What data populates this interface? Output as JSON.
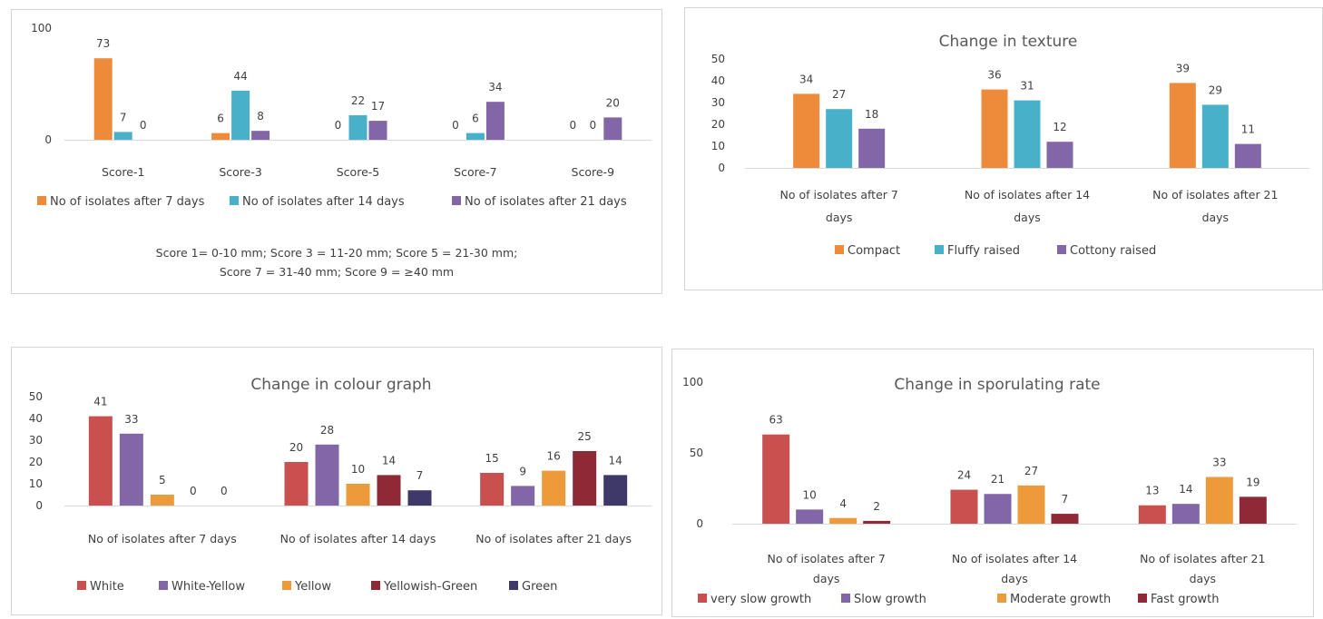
{
  "chart_data": [
    {
      "type": "bar",
      "title": "",
      "categories": [
        "Score-1",
        "Score-3",
        "Score-5",
        "Score-7",
        "Score-9"
      ],
      "series": [
        {
          "name": "No of isolates after 7 days",
          "values": [
            73,
            6,
            0,
            0,
            0
          ],
          "color": "#ed8b3a"
        },
        {
          "name": "No of isolates after 14 days",
          "values": [
            7,
            44,
            22,
            6,
            0
          ],
          "color": "#48b0c8"
        },
        {
          "name": "No of isolates after 21 days",
          "values": [
            0,
            8,
            17,
            34,
            20
          ],
          "color": "#8266a8"
        }
      ],
      "ylim": [
        0,
        100
      ],
      "yticks": [
        "0",
        "100"
      ],
      "legend_position": "bottom",
      "grid": false,
      "notes": [
        "Score 1= 0-10 mm; Score 3 = 11-20 mm; Score 5 = 21-30 mm;",
        "Score 7 = 31-40 mm; Score 9 =  ≥40 mm"
      ]
    },
    {
      "type": "bar",
      "title": "Change in texture",
      "categories": [
        "No of isolates after 7 days",
        "No of isolates after 14 days",
        "No of isolates after 21 days"
      ],
      "series": [
        {
          "name": "Compact",
          "values": [
            34,
            36,
            39
          ],
          "color": "#ed8b3a"
        },
        {
          "name": "Fluffy raised",
          "values": [
            27,
            31,
            29
          ],
          "color": "#48b0c8"
        },
        {
          "name": "Cottony raised",
          "values": [
            18,
            12,
            11
          ],
          "color": "#8266a8"
        }
      ],
      "ylim": [
        0,
        50
      ],
      "yticks": [
        "0",
        "10",
        "20",
        "30",
        "40",
        "50"
      ],
      "legend_position": "bottom",
      "grid": false
    },
    {
      "type": "bar",
      "title": "Change in colour graph",
      "categories": [
        "No of isolates after 7 days",
        "No of isolates after 14 days",
        "No of isolates after 21 days"
      ],
      "series": [
        {
          "name": "White",
          "values": [
            41,
            20,
            15
          ],
          "color": "#c9504f"
        },
        {
          "name": "White-Yellow",
          "values": [
            33,
            28,
            9
          ],
          "color": "#8266a8"
        },
        {
          "name": "Yellow",
          "values": [
            5,
            10,
            16
          ],
          "color": "#ed9a3a"
        },
        {
          "name": "Yellowish-Green",
          "values": [
            0,
            14,
            25
          ],
          "color": "#8e2a36"
        },
        {
          "name": "Green",
          "values": [
            0,
            7,
            14
          ],
          "color": "#3e3968"
        }
      ],
      "ylim": [
        0,
        50
      ],
      "yticks": [
        "0",
        "10",
        "20",
        "30",
        "40",
        "50"
      ],
      "legend_position": "bottom",
      "grid": false
    },
    {
      "type": "bar",
      "title": "Change in sporulating rate",
      "categories": [
        "No of isolates after 7 days",
        "No of isolates after 14 days",
        "No of isolates after 21 days"
      ],
      "series": [
        {
          "name": "very slow growth",
          "values": [
            63,
            24,
            13
          ],
          "color": "#c9504f"
        },
        {
          "name": "Slow growth",
          "values": [
            10,
            21,
            14
          ],
          "color": "#8266a8"
        },
        {
          "name": "Moderate growth",
          "values": [
            4,
            27,
            33
          ],
          "color": "#ed9a3a"
        },
        {
          "name": "Fast growth",
          "values": [
            2,
            7,
            19
          ],
          "color": "#8e2a36"
        }
      ],
      "ylim": [
        0,
        100
      ],
      "yticks": [
        "0",
        "50",
        "100"
      ],
      "legend_position": "bottom",
      "grid": false
    }
  ]
}
